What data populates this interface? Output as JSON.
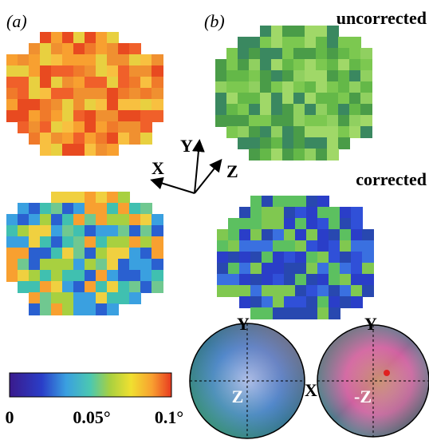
{
  "panels": {
    "a": "(a)",
    "b": "(b)"
  },
  "rows": {
    "top": "uncorrected",
    "bottom": "corrected"
  },
  "axes": {
    "y": "Y",
    "x": "X",
    "z": "Z"
  },
  "colorbar": {
    "ticks": [
      "0",
      "0.05°",
      "0.1°"
    ]
  },
  "pole_figures": {
    "left": {
      "top": "Y",
      "center": "Z"
    },
    "middle": "X",
    "right": {
      "top": "Y",
      "center": "-Z"
    }
  }
}
